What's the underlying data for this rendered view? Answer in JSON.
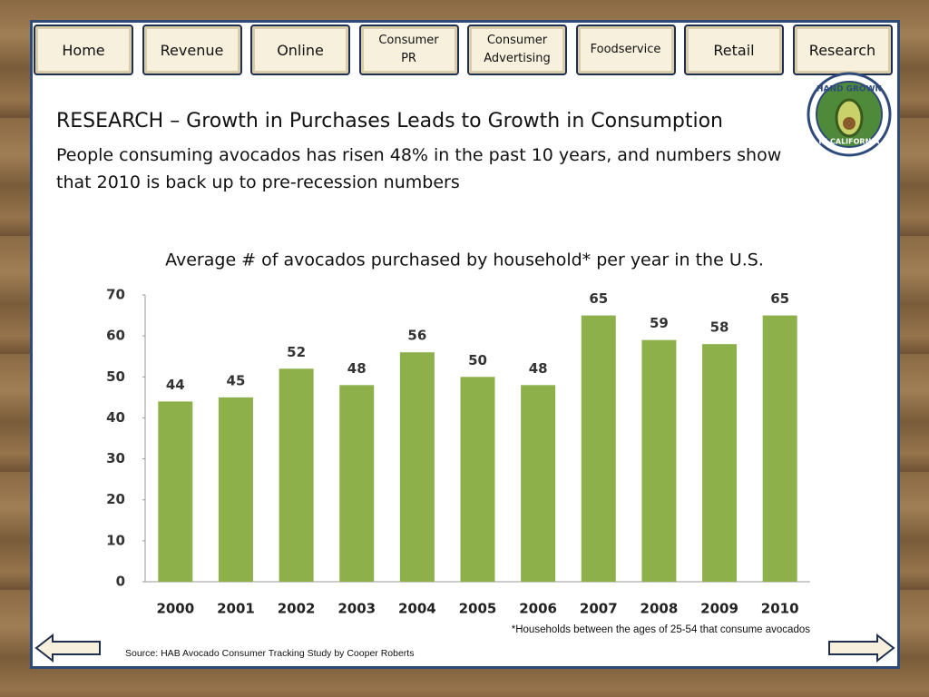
{
  "nav": [
    "Home",
    "Revenue",
    "Online",
    "Consumer PR",
    "Consumer Advertising",
    "Foodservice",
    "Retail",
    "Research"
  ],
  "logo": {
    "top": "HAND GROWN",
    "bottom": "IN CALIFORNIA"
  },
  "title": "RESEARCH – Growth in Purchases Leads to Growth in Consumption",
  "subtitle": "People consuming avocados has risen 48% in the past 10 years, and numbers show that 2010 is back up to pre-recession numbers",
  "chart_data": {
    "type": "bar",
    "title": "Average # of avocados purchased by household* per year in the U.S.",
    "categories": [
      "2000",
      "2001",
      "2002",
      "2003",
      "2004",
      "2005",
      "2006",
      "2007",
      "2008",
      "2009",
      "2010"
    ],
    "values": [
      44,
      45,
      52,
      48,
      56,
      50,
      48,
      65,
      59,
      58,
      65
    ],
    "color": "#8db04b",
    "ylim": [
      0,
      70
    ],
    "yticks": [
      0,
      10,
      20,
      30,
      40,
      50,
      60,
      70
    ],
    "grid": false
  },
  "footnote": "*Households between the ages of 25-54 that consume avocados",
  "source": "Source: HAB Avocado Consumer Tracking Study by Cooper Roberts"
}
